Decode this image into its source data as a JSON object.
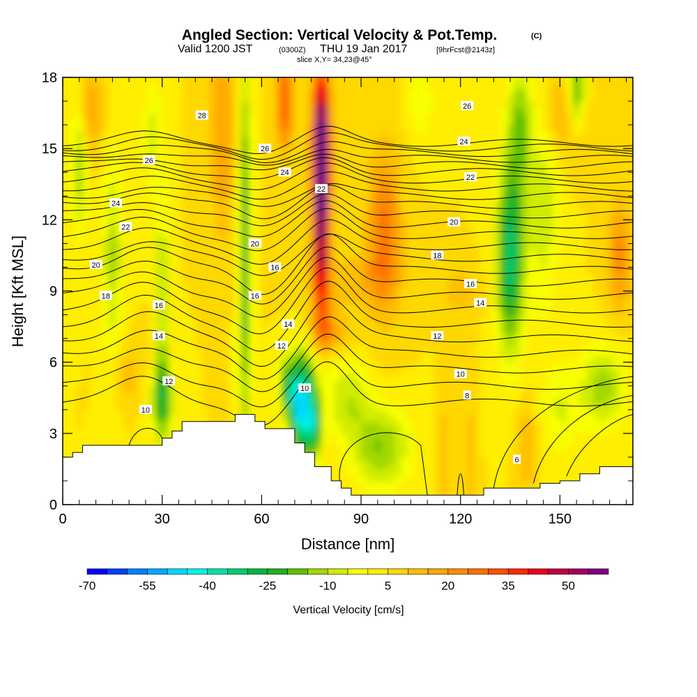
{
  "header": {
    "title": "Angled Section: Vertical Velocity & Pot.Temp.",
    "copyright": "(C)",
    "valid_prefix": "Valid 1200 JST",
    "utc": "(0300Z)",
    "valid_date": "THU 19 Jan 2017",
    "forecast": "[9hrFcst@2143z]",
    "slice": "slice X,Y= 34,23@45°"
  },
  "chart_data": {
    "type": "heatmap",
    "xlabel": "Distance [nm]",
    "ylabel": "Height [Kft MSL]",
    "xlim": [
      0,
      172
    ],
    "ylim": [
      0,
      18
    ],
    "x_ticks": [
      0,
      30,
      60,
      90,
      120,
      150
    ],
    "y_ticks": [
      0,
      3,
      6,
      9,
      12,
      15,
      18
    ],
    "colorbar": {
      "label": "Vertical Velocity [cm/s]",
      "tick_labels": [
        "-70",
        "-55",
        "-40",
        "-25",
        "-10",
        "5",
        "20",
        "35",
        "50"
      ],
      "tick_values": [
        -70,
        -55,
        -40,
        -25,
        -10,
        5,
        20,
        35,
        50
      ],
      "bins": [
        -70,
        -65,
        -60,
        -55,
        -50,
        -45,
        -40,
        -35,
        -30,
        -25,
        -20,
        -15,
        -10,
        -5,
        0,
        5,
        10,
        15,
        20,
        25,
        30,
        35,
        40,
        45,
        50,
        55,
        60
      ],
      "colors": [
        "#0000ff",
        "#0040ff",
        "#0080ff",
        "#00a8ff",
        "#00d8ff",
        "#00f4e8",
        "#00e0a8",
        "#00cc70",
        "#00b840",
        "#20b020",
        "#60c000",
        "#a0d800",
        "#d0ec00",
        "#f8ff00",
        "#ffee00",
        "#ffd800",
        "#ffc000",
        "#ffa800",
        "#ff8c00",
        "#ff7000",
        "#ff5000",
        "#ff2800",
        "#e8001a",
        "#c00040",
        "#a00060",
        "#800080"
      ]
    },
    "contour_field": "Potential temperature",
    "contour_levels": [
      6,
      8,
      10,
      12,
      14,
      16,
      18,
      20,
      22,
      24,
      26,
      28
    ],
    "contour_labels": [
      {
        "text": "28",
        "x": 42,
        "y": 16.4
      },
      {
        "text": "26",
        "x": 26,
        "y": 14.5
      },
      {
        "text": "26",
        "x": 61,
        "y": 15.0
      },
      {
        "text": "26",
        "x": 122,
        "y": 16.8
      },
      {
        "text": "24",
        "x": 16,
        "y": 12.7
      },
      {
        "text": "24",
        "x": 67,
        "y": 14.0
      },
      {
        "text": "24",
        "x": 121,
        "y": 15.3
      },
      {
        "text": "22",
        "x": 19,
        "y": 11.7
      },
      {
        "text": "22",
        "x": 78,
        "y": 13.3
      },
      {
        "text": "22",
        "x": 123,
        "y": 13.8
      },
      {
        "text": "20",
        "x": 10,
        "y": 10.1
      },
      {
        "text": "20",
        "x": 58,
        "y": 11.0
      },
      {
        "text": "20",
        "x": 118,
        "y": 11.9
      },
      {
        "text": "18",
        "x": 13,
        "y": 8.8
      },
      {
        "text": "18",
        "x": 113,
        "y": 10.5
      },
      {
        "text": "16",
        "x": 29,
        "y": 8.4
      },
      {
        "text": "16",
        "x": 64,
        "y": 10.0
      },
      {
        "text": "16",
        "x": 58,
        "y": 8.8
      },
      {
        "text": "16",
        "x": 123,
        "y": 9.3
      },
      {
        "text": "14",
        "x": 29,
        "y": 7.1
      },
      {
        "text": "14",
        "x": 68,
        "y": 7.6
      },
      {
        "text": "14",
        "x": 126,
        "y": 8.5
      },
      {
        "text": "12",
        "x": 66,
        "y": 6.7
      },
      {
        "text": "12",
        "x": 113,
        "y": 7.1
      },
      {
        "text": "12",
        "x": 32,
        "y": 5.2
      },
      {
        "text": "10",
        "x": 25,
        "y": 4.0
      },
      {
        "text": "10",
        "x": 73,
        "y": 4.9
      },
      {
        "text": "10",
        "x": 120,
        "y": 5.5
      },
      {
        "text": "8",
        "x": 122,
        "y": 4.6
      },
      {
        "text": "6",
        "x": 137,
        "y": 1.9
      }
    ],
    "terrain": {
      "x": [
        0,
        3,
        3,
        6,
        6,
        9,
        9,
        12,
        12,
        15,
        15,
        18,
        18,
        21,
        21,
        24,
        24,
        27,
        27,
        30,
        30,
        33,
        33,
        36,
        36,
        46,
        46,
        52,
        52,
        58,
        58,
        61,
        61,
        67,
        67,
        70,
        70,
        73,
        73,
        76,
        76,
        78,
        78,
        81,
        81,
        84,
        84,
        87,
        87,
        90,
        90,
        102,
        102,
        114,
        114,
        120,
        120,
        127,
        127,
        144,
        144,
        150,
        150,
        156,
        156,
        162,
        162,
        172
      ],
      "top": [
        2.0,
        2.0,
        2.2,
        2.2,
        2.5,
        2.5,
        2.5,
        2.5,
        2.5,
        2.5,
        2.5,
        2.5,
        2.5,
        2.5,
        2.5,
        2.5,
        2.5,
        2.5,
        2.5,
        2.5,
        2.8,
        2.8,
        3.1,
        3.1,
        3.5,
        3.5,
        3.5,
        3.5,
        3.8,
        3.8,
        3.5,
        3.5,
        3.2,
        3.2,
        3.2,
        3.2,
        2.6,
        2.6,
        2.2,
        2.2,
        1.6,
        1.6,
        1.6,
        1.6,
        1.0,
        1.0,
        0.7,
        0.7,
        0.4,
        0.4,
        0.4,
        0.4,
        0.4,
        0.4,
        0.4,
        0.4,
        0.4,
        0.4,
        0.7,
        0.7,
        0.9,
        0.9,
        1.0,
        1.0,
        1.3,
        1.3,
        1.6,
        1.6
      ]
    }
  }
}
